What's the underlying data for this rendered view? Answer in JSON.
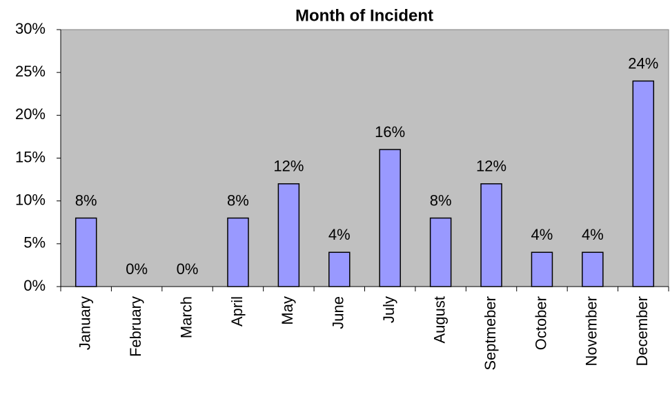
{
  "chart_data": {
    "type": "bar",
    "title": "Month of Incident",
    "categories": [
      "January",
      "February",
      "March",
      "April",
      "May",
      "June",
      "July",
      "August",
      "Septmeber",
      "October",
      "November",
      "December"
    ],
    "values": [
      8,
      0,
      0,
      8,
      12,
      4,
      16,
      8,
      12,
      4,
      4,
      24
    ],
    "value_labels": [
      "8%",
      "0%",
      "0%",
      "8%",
      "12%",
      "4%",
      "16%",
      "8%",
      "12%",
      "4%",
      "4%",
      "24%"
    ],
    "color": "#9999ff",
    "ylim": [
      0,
      30
    ],
    "yticks": [
      {
        "value": 0,
        "label": "0%"
      },
      {
        "value": 5,
        "label": "5%"
      },
      {
        "value": 10,
        "label": "10%"
      },
      {
        "value": 15,
        "label": "15%"
      },
      {
        "value": 20,
        "label": "20%"
      },
      {
        "value": 25,
        "label": "25%"
      },
      {
        "value": 30,
        "label": "30%"
      }
    ],
    "grid": false
  }
}
